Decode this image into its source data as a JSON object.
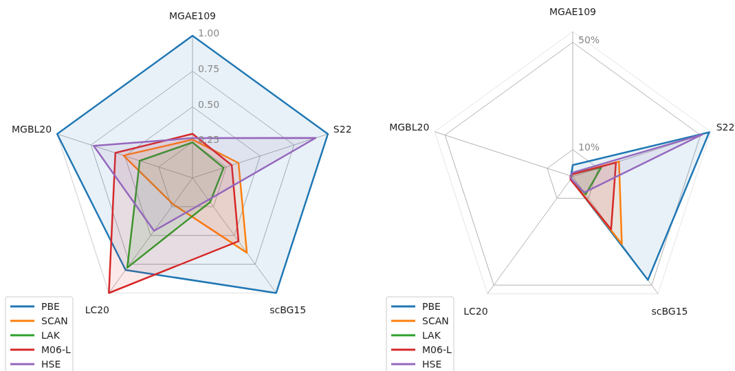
{
  "chart_data": [
    {
      "type": "radar",
      "categories": [
        "MGAE109",
        "S22",
        "scBG15",
        "LC20",
        "MGBL20"
      ],
      "ylim": [
        0,
        1
      ],
      "yticks": [
        {
          "value": 0.25,
          "label": "0.25"
        },
        {
          "value": 0.5,
          "label": "0.50"
        },
        {
          "value": 0.75,
          "label": "0.75"
        },
        {
          "value": 1,
          "label": "1.00"
        }
      ],
      "grid": true,
      "legend": "bottom left",
      "series": [
        {
          "name": "PBE",
          "color": "#1f77b4",
          "values": [
            1.0,
            1.0,
            1.0,
            0.8,
            1.0
          ]
        },
        {
          "name": "SCAN",
          "color": "#ff7f0e",
          "values": [
            0.27,
            0.34,
            0.65,
            0.23,
            0.51
          ]
        },
        {
          "name": "LAK",
          "color": "#2ca02c",
          "values": [
            0.25,
            0.23,
            0.21,
            0.78,
            0.39
          ]
        },
        {
          "name": "M06-L",
          "color": "#d62728",
          "values": [
            0.31,
            0.29,
            0.55,
            1.0,
            0.57
          ]
        },
        {
          "name": "HSE",
          "color": "#9467bd",
          "values": [
            0.28,
            0.91,
            0.19,
            0.46,
            0.73
          ]
        }
      ]
    },
    {
      "type": "radar",
      "categories": [
        "MGAE109",
        "S22",
        "scBG15",
        "LC20",
        "MGBL20"
      ],
      "ylim": [
        0,
        54
      ],
      "yticks": [
        {
          "value": 10,
          "label": "10%"
        },
        {
          "value": 50,
          "label": "50%"
        }
      ],
      "grid": true,
      "legend": "bottom left",
      "series": [
        {
          "name": "PBE",
          "color": "#1f77b4",
          "values": [
            4.3,
            53.4,
            47.6,
            1.2,
            0.7
          ]
        },
        {
          "name": "SCAN",
          "color": "#ff7f0e",
          "values": [
            1.1,
            18.1,
            31.1,
            1.2,
            0.6
          ]
        },
        {
          "name": "LAK",
          "color": "#2ca02c",
          "values": [
            1.1,
            11.2,
            8.2,
            1.2,
            0.6
          ]
        },
        {
          "name": "M06-L",
          "color": "#d62728",
          "values": [
            0.9,
            16.9,
            24.3,
            1.4,
            0.9
          ]
        },
        {
          "name": "HSE",
          "color": "#9467bd",
          "values": [
            1.5,
            50.7,
            7.3,
            1.0,
            0.8
          ]
        }
      ]
    }
  ]
}
